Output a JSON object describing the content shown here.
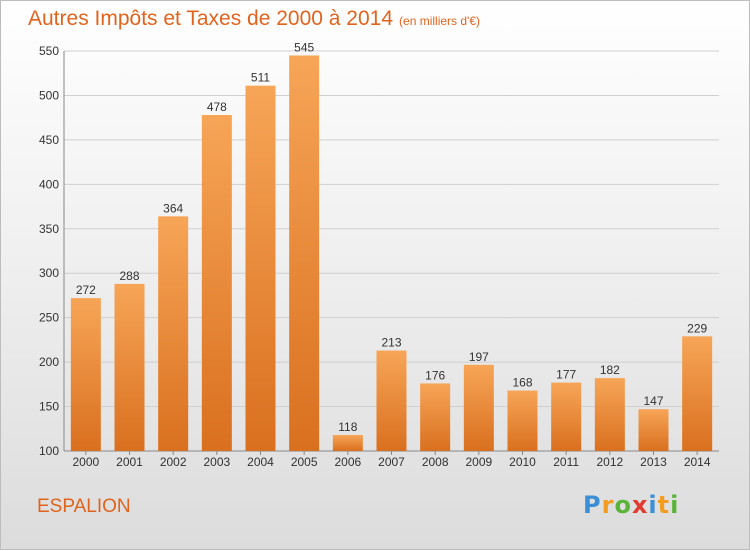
{
  "title": "Autres Impôts et Taxes de 2000 à 2014",
  "subtitle": "(en milliers d'€)",
  "place": "ESPALION",
  "logo": {
    "letters": [
      "P",
      "r",
      "o",
      "x",
      "i",
      "t",
      "i"
    ],
    "colors": [
      "#3b8fd6",
      "#f29d1f",
      "#5bb43a",
      "#e23a2e",
      "#3b8fd6",
      "#f29d1f",
      "#5bb43a"
    ]
  },
  "chart_data": {
    "type": "bar",
    "categories": [
      "2000",
      "2001",
      "2002",
      "2003",
      "2004",
      "2005",
      "2006",
      "2007",
      "2008",
      "2009",
      "2010",
      "2011",
      "2012",
      "2013",
      "2014"
    ],
    "values": [
      272,
      288,
      364,
      478,
      511,
      545,
      118,
      213,
      176,
      197,
      168,
      177,
      182,
      147,
      229
    ],
    "ylim": [
      100,
      550
    ],
    "yticks": [
      100,
      150,
      200,
      250,
      300,
      350,
      400,
      450,
      500,
      550
    ],
    "grid": true,
    "bar_color": "#f28c28"
  }
}
